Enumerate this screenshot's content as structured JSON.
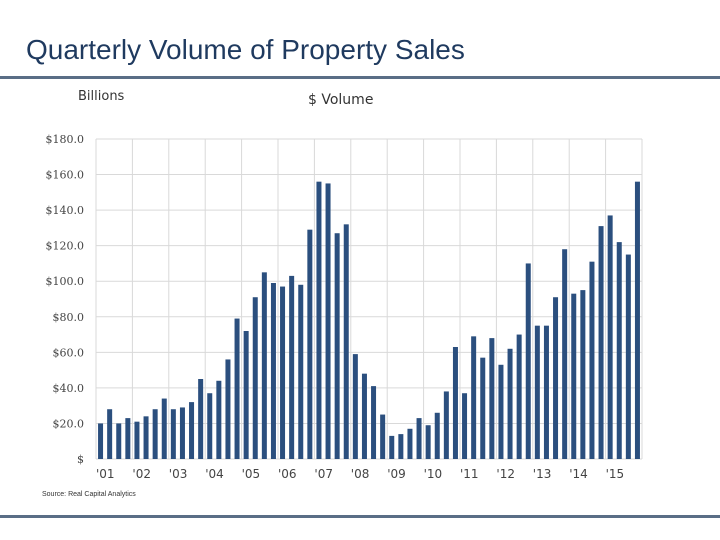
{
  "slide": {
    "title": "Quarterly Volume of Property Sales",
    "source": "Source:  Real Capital Analytics"
  },
  "colors": {
    "bar": "#2b4f7e",
    "grid": "#d9d9d9",
    "rule": "#5a6e86",
    "title": "#1f3a5f"
  },
  "chart_data": {
    "type": "bar",
    "title": "$ Volume",
    "ylabel": "Billions",
    "xlabel": "",
    "ylim": [
      0,
      180
    ],
    "grid": true,
    "yticks": [
      0,
      20,
      40,
      60,
      80,
      100,
      120,
      140,
      160,
      180
    ],
    "ytick_labels": [
      "$",
      "$20.0",
      "$40.0",
      "$60.0",
      "$80.0",
      "$100.0",
      "$120.0",
      "$140.0",
      "$160.0",
      "$180.0"
    ],
    "year_labels": [
      "'01",
      "'02",
      "'03",
      "'04",
      "'05",
      "'06",
      "'07",
      "'08",
      "'09",
      "'10",
      "'11",
      "'12",
      "'13",
      "'14",
      "'15"
    ],
    "categories": [
      "2001Q1",
      "2001Q2",
      "2001Q3",
      "2001Q4",
      "2002Q1",
      "2002Q2",
      "2002Q3",
      "2002Q4",
      "2003Q1",
      "2003Q2",
      "2003Q3",
      "2003Q4",
      "2004Q1",
      "2004Q2",
      "2004Q3",
      "2004Q4",
      "2005Q1",
      "2005Q2",
      "2005Q3",
      "2005Q4",
      "2006Q1",
      "2006Q2",
      "2006Q3",
      "2006Q4",
      "2007Q1",
      "2007Q2",
      "2007Q3",
      "2007Q4",
      "2008Q1",
      "2008Q2",
      "2008Q3",
      "2008Q4",
      "2009Q1",
      "2009Q2",
      "2009Q3",
      "2009Q4",
      "2010Q1",
      "2010Q2",
      "2010Q3",
      "2010Q4",
      "2011Q1",
      "2011Q2",
      "2011Q3",
      "2011Q4",
      "2012Q1",
      "2012Q2",
      "2012Q3",
      "2012Q4",
      "2013Q1",
      "2013Q2",
      "2013Q3",
      "2013Q4",
      "2014Q1",
      "2014Q2",
      "2014Q3",
      "2014Q4",
      "2015Q1",
      "2015Q2",
      "2015Q3",
      "2015Q4"
    ],
    "values": [
      20,
      28,
      20,
      23,
      21,
      24,
      28,
      34,
      28,
      29,
      32,
      45,
      37,
      44,
      56,
      79,
      72,
      91,
      105,
      99,
      97,
      103,
      98,
      129,
      156,
      155,
      127,
      132,
      59,
      48,
      41,
      25,
      13,
      14,
      17,
      23,
      19,
      26,
      38,
      63,
      37,
      69,
      57,
      68,
      53,
      62,
      70,
      110,
      75,
      75,
      91,
      118,
      93,
      95,
      111,
      131,
      137,
      122,
      115,
      156
    ]
  }
}
